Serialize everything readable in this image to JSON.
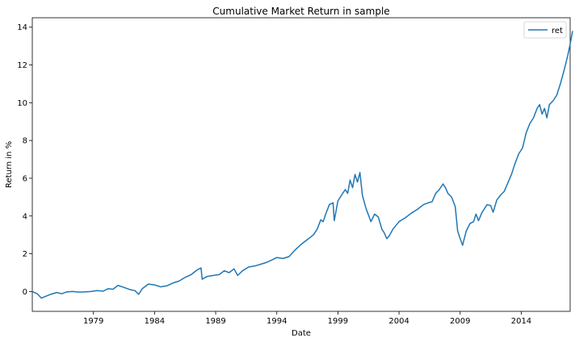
{
  "chart_data": {
    "type": "line",
    "title": "Cumulative Market Return in sample",
    "xlabel": "Date",
    "ylabel": "Return in %",
    "xlim": [
      1974.0,
      2018.0
    ],
    "ylim": [
      -1.05,
      14.5
    ],
    "x_ticks": [
      1979,
      1984,
      1989,
      1994,
      1999,
      2004,
      2009,
      2014
    ],
    "x_tick_labels": [
      "1979",
      "1984",
      "1989",
      "1994",
      "1999",
      "2004",
      "2009",
      "2014"
    ],
    "y_ticks": [
      0,
      2,
      4,
      6,
      8,
      10,
      12,
      14
    ],
    "y_tick_labels": [
      "0",
      "2",
      "4",
      "6",
      "8",
      "10",
      "12",
      "14"
    ],
    "grid": false,
    "legend_position": "top-right",
    "series": [
      {
        "name": "ret",
        "color": "#1f77b4",
        "points": [
          [
            1974.0,
            0.0
          ],
          [
            1974.4,
            -0.12
          ],
          [
            1974.75,
            -0.35
          ],
          [
            1975.1,
            -0.25
          ],
          [
            1975.5,
            -0.15
          ],
          [
            1976.0,
            -0.05
          ],
          [
            1976.4,
            -0.12
          ],
          [
            1976.8,
            -0.02
          ],
          [
            1977.3,
            0.0
          ],
          [
            1977.8,
            -0.03
          ],
          [
            1978.3,
            -0.02
          ],
          [
            1978.8,
            0.0
          ],
          [
            1979.3,
            0.05
          ],
          [
            1979.8,
            0.02
          ],
          [
            1980.2,
            0.15
          ],
          [
            1980.6,
            0.12
          ],
          [
            1981.0,
            0.32
          ],
          [
            1981.5,
            0.22
          ],
          [
            1982.0,
            0.1
          ],
          [
            1982.4,
            0.05
          ],
          [
            1982.7,
            -0.15
          ],
          [
            1983.0,
            0.15
          ],
          [
            1983.5,
            0.4
          ],
          [
            1984.0,
            0.35
          ],
          [
            1984.5,
            0.25
          ],
          [
            1985.0,
            0.3
          ],
          [
            1985.5,
            0.45
          ],
          [
            1986.0,
            0.55
          ],
          [
            1986.5,
            0.75
          ],
          [
            1987.0,
            0.9
          ],
          [
            1987.5,
            1.15
          ],
          [
            1987.8,
            1.25
          ],
          [
            1987.9,
            0.65
          ],
          [
            1988.3,
            0.8
          ],
          [
            1988.8,
            0.85
          ],
          [
            1989.3,
            0.9
          ],
          [
            1989.7,
            1.1
          ],
          [
            1990.1,
            1.0
          ],
          [
            1990.5,
            1.2
          ],
          [
            1990.8,
            0.85
          ],
          [
            1991.2,
            1.1
          ],
          [
            1991.7,
            1.3
          ],
          [
            1992.2,
            1.35
          ],
          [
            1992.7,
            1.45
          ],
          [
            1993.2,
            1.55
          ],
          [
            1993.7,
            1.7
          ],
          [
            1994.0,
            1.8
          ],
          [
            1994.5,
            1.75
          ],
          [
            1995.0,
            1.85
          ],
          [
            1995.5,
            2.2
          ],
          [
            1996.0,
            2.5
          ],
          [
            1996.5,
            2.75
          ],
          [
            1997.0,
            3.0
          ],
          [
            1997.3,
            3.3
          ],
          [
            1997.6,
            3.8
          ],
          [
            1997.8,
            3.7
          ],
          [
            1998.0,
            4.1
          ],
          [
            1998.3,
            4.6
          ],
          [
            1998.6,
            4.7
          ],
          [
            1998.7,
            3.75
          ],
          [
            1999.0,
            4.8
          ],
          [
            1999.3,
            5.1
          ],
          [
            1999.6,
            5.4
          ],
          [
            1999.8,
            5.2
          ],
          [
            2000.0,
            5.9
          ],
          [
            2000.2,
            5.5
          ],
          [
            2000.4,
            6.2
          ],
          [
            2000.6,
            5.8
          ],
          [
            2000.8,
            6.3
          ],
          [
            2001.0,
            5.1
          ],
          [
            2001.3,
            4.4
          ],
          [
            2001.7,
            3.7
          ],
          [
            2002.0,
            4.1
          ],
          [
            2002.3,
            3.95
          ],
          [
            2002.6,
            3.3
          ],
          [
            2002.8,
            3.1
          ],
          [
            2003.0,
            2.8
          ],
          [
            2003.2,
            2.95
          ],
          [
            2003.5,
            3.3
          ],
          [
            2004.0,
            3.7
          ],
          [
            2004.5,
            3.9
          ],
          [
            2005.0,
            4.15
          ],
          [
            2005.5,
            4.35
          ],
          [
            2006.0,
            4.6
          ],
          [
            2006.4,
            4.7
          ],
          [
            2006.7,
            4.75
          ],
          [
            2007.0,
            5.2
          ],
          [
            2007.3,
            5.4
          ],
          [
            2007.6,
            5.7
          ],
          [
            2007.8,
            5.5
          ],
          [
            2008.0,
            5.2
          ],
          [
            2008.3,
            5.0
          ],
          [
            2008.6,
            4.5
          ],
          [
            2008.8,
            3.2
          ],
          [
            2009.0,
            2.8
          ],
          [
            2009.2,
            2.45
          ],
          [
            2009.5,
            3.2
          ],
          [
            2009.8,
            3.6
          ],
          [
            2010.1,
            3.7
          ],
          [
            2010.3,
            4.1
          ],
          [
            2010.5,
            3.75
          ],
          [
            2010.8,
            4.2
          ],
          [
            2011.2,
            4.6
          ],
          [
            2011.5,
            4.55
          ],
          [
            2011.7,
            4.2
          ],
          [
            2012.0,
            4.85
          ],
          [
            2012.3,
            5.1
          ],
          [
            2012.6,
            5.3
          ],
          [
            2012.9,
            5.75
          ],
          [
            2013.2,
            6.2
          ],
          [
            2013.5,
            6.8
          ],
          [
            2013.8,
            7.3
          ],
          [
            2014.1,
            7.6
          ],
          [
            2014.4,
            8.4
          ],
          [
            2014.7,
            8.9
          ],
          [
            2015.0,
            9.2
          ],
          [
            2015.3,
            9.7
          ],
          [
            2015.5,
            9.9
          ],
          [
            2015.7,
            9.4
          ],
          [
            2015.9,
            9.7
          ],
          [
            2016.1,
            9.2
          ],
          [
            2016.3,
            9.9
          ],
          [
            2016.6,
            10.1
          ],
          [
            2016.9,
            10.4
          ],
          [
            2017.2,
            11.0
          ],
          [
            2017.5,
            11.7
          ],
          [
            2017.8,
            12.5
          ],
          [
            2018.0,
            13.1
          ],
          [
            2018.2,
            13.8
          ]
        ]
      }
    ]
  }
}
